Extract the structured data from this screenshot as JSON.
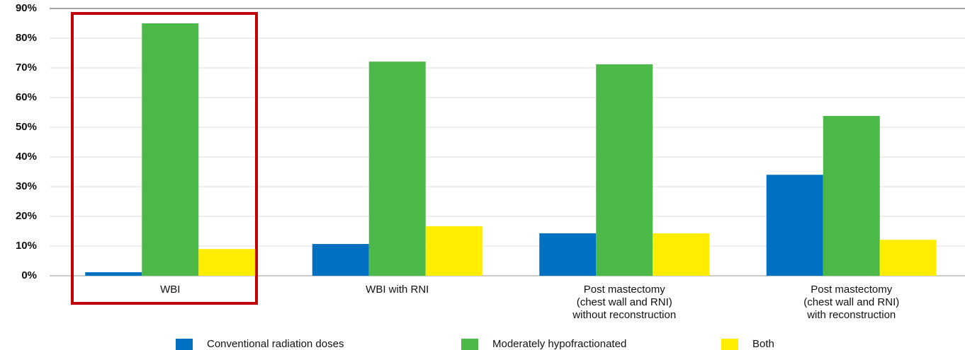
{
  "chart_data": {
    "type": "bar",
    "categories": [
      "WBI",
      "WBI with RNI",
      "Post mastectomy\n(chest wall and RNI)\nwithout reconstruction",
      "Post mastectomy\n(chest wall and RNI)\nwith reconstruction"
    ],
    "series": [
      {
        "name": "Conventional radiation doses",
        "color": "#0070c0",
        "values": [
          1.2,
          10.7,
          14.3,
          34.0
        ]
      },
      {
        "name": "Moderately hypofractionated",
        "color": "#4cb848",
        "values": [
          85.0,
          72.1,
          71.2,
          53.8
        ]
      },
      {
        "name": "Both",
        "color": "#ffed00",
        "values": [
          9.0,
          16.7,
          14.3,
          12.1
        ]
      }
    ],
    "ylim": [
      0,
      90
    ],
    "yticks": [
      {
        "value": 0,
        "label": "0%"
      },
      {
        "value": 10,
        "label": "10%"
      },
      {
        "value": 20,
        "label": "20%"
      },
      {
        "value": 30,
        "label": "30%"
      },
      {
        "value": 40,
        "label": "40%"
      },
      {
        "value": 50,
        "label": "50%"
      },
      {
        "value": 60,
        "label": "60%"
      },
      {
        "value": 70,
        "label": "70%"
      },
      {
        "value": 80,
        "label": "80%"
      },
      {
        "value": 90,
        "label": "90%"
      }
    ],
    "grid": true,
    "legend": "bottom"
  }
}
